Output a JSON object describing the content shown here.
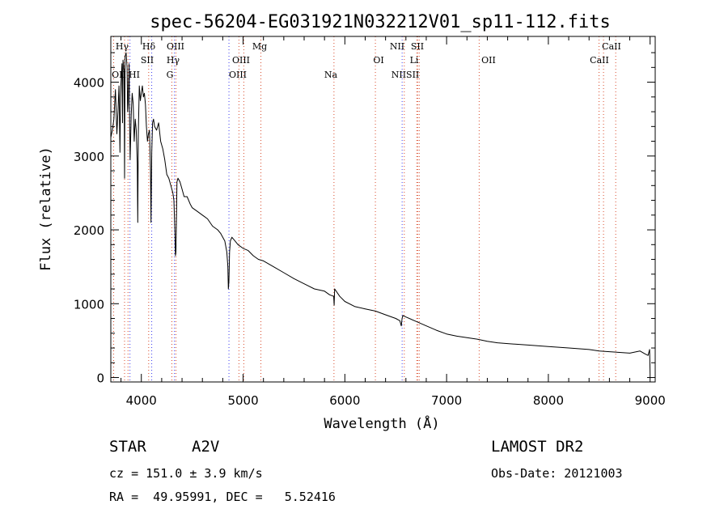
{
  "chart_data": {
    "type": "line",
    "title": "spec-56204-EG031921N032212V01_sp11-112.fits",
    "xlabel": "Wavelength (Å)",
    "ylabel": "Flux (relative)",
    "xlim": [
      3700,
      9050
    ],
    "ylim": [
      -60,
      4620
    ],
    "xticks": [
      4000,
      5000,
      6000,
      7000,
      8000,
      9000
    ],
    "yticks": [
      0,
      1000,
      2000,
      3000,
      4000
    ],
    "grid": false,
    "series": [
      {
        "x": [
          3700,
          3715,
          3730,
          3745,
          3760,
          3770,
          3780,
          3790,
          3795,
          3800,
          3810,
          3815,
          3820,
          3830,
          3835,
          3840,
          3850,
          3860,
          3865,
          3870,
          3880,
          3885,
          3890,
          3900,
          3910,
          3920,
          3930,
          3940,
          3950,
          3960,
          3965,
          3970,
          3980,
          3990,
          4000,
          4010,
          4020,
          4030,
          4040,
          4050,
          4060,
          4070,
          4080,
          4090,
          4095,
          4102,
          4110,
          4120,
          4130,
          4150,
          4170,
          4190,
          4210,
          4230,
          4250,
          4270,
          4290,
          4310,
          4320,
          4330,
          4335,
          4340,
          4345,
          4350,
          4360,
          4380,
          4400,
          4420,
          4450,
          4480,
          4500,
          4550,
          4600,
          4650,
          4700,
          4750,
          4780,
          4800,
          4820,
          4840,
          4850,
          4855,
          4861,
          4867,
          4875,
          4890,
          4920,
          4950,
          5000,
          5050,
          5100,
          5150,
          5200,
          5300,
          5400,
          5500,
          5600,
          5700,
          5800,
          5850,
          5890,
          5895,
          5900,
          5950,
          6000,
          6100,
          6200,
          6300,
          6400,
          6500,
          6540,
          6555,
          6563,
          6570,
          6600,
          6700,
          6800,
          6900,
          7000,
          7100,
          7200,
          7300,
          7400,
          7500,
          7600,
          7800,
          8000,
          8200,
          8400,
          8500,
          8600,
          8700,
          8800,
          8900,
          8950,
          8980,
          8995,
          9000
        ],
        "values": [
          3250,
          3350,
          3500,
          3900,
          3300,
          3600,
          3950,
          3050,
          3800,
          4000,
          4250,
          3450,
          4300,
          4150,
          2700,
          4350,
          4400,
          4200,
          3600,
          3700,
          4250,
          3400,
          2950,
          3550,
          3850,
          3700,
          3200,
          3500,
          3350,
          2900,
          2100,
          3300,
          3950,
          3750,
          3850,
          3950,
          3800,
          3850,
          3700,
          3400,
          3200,
          3300,
          3350,
          2800,
          2100,
          3050,
          3450,
          3500,
          3400,
          3350,
          3450,
          3200,
          3100,
          2950,
          2750,
          2700,
          2600,
          2500,
          2400,
          1950,
          1650,
          1700,
          2150,
          2650,
          2700,
          2650,
          2550,
          2450,
          2450,
          2350,
          2300,
          2250,
          2200,
          2150,
          2050,
          2000,
          1950,
          1900,
          1850,
          1700,
          1500,
          1200,
          1300,
          1700,
          1850,
          1900,
          1850,
          1800,
          1750,
          1720,
          1650,
          1600,
          1580,
          1500,
          1420,
          1340,
          1270,
          1200,
          1170,
          1120,
          1100,
          980,
          1200,
          1100,
          1030,
          960,
          930,
          900,
          850,
          800,
          770,
          700,
          800,
          840,
          820,
          760,
          700,
          640,
          590,
          560,
          540,
          520,
          490,
          470,
          460,
          440,
          420,
          400,
          380,
          360,
          350,
          340,
          330,
          360,
          320,
          300,
          380,
          50
        ]
      }
    ],
    "annotations": {
      "line_labels": [
        "Hγ",
        "Hδ",
        "OIII",
        "NII",
        "SII",
        "CaII",
        "SII",
        "Hγ",
        "OIII",
        "Mg",
        "OI",
        "Li",
        "OII",
        "CaII",
        "OII",
        "HI",
        "G",
        "OIII",
        "Na",
        "NIISII"
      ],
      "lines_blue": [
        3888,
        4102,
        4325,
        4861,
        6563
      ],
      "lines_red": [
        3728,
        3835,
        3869,
        4072,
        4300,
        4340,
        4959,
        5007,
        5175,
        5893,
        6300,
        6584,
        6707,
        6716,
        6731,
        7320,
        8498,
        8542,
        8662
      ]
    }
  },
  "footer": {
    "object_class": "STAR",
    "subclass": "A2V",
    "survey": "LAMOST DR2",
    "redshift_text": "cz = 151.0 ± 3.9 km/s",
    "obs_date": "Obs-Date: 20121003",
    "coords": "RA =  49.95991, DEC =   5.52416"
  },
  "colors": {
    "spectrum": "#000000",
    "line_blue": "#3a3af0",
    "line_red": "#d84a2a",
    "axis": "#000000"
  }
}
